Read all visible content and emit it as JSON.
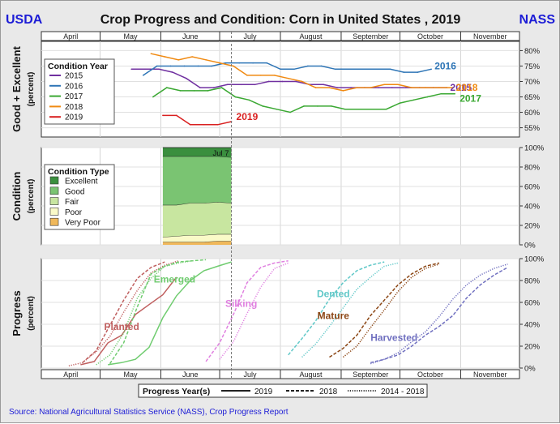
{
  "header": {
    "left_tag": "USDA",
    "title": "Crop Progress and Condition: Corn in United States , 2019",
    "right_tag": "NASS"
  },
  "source": "Source: National Agricultural Statistics Service (NASS), Crop Progress Report",
  "colors": {
    "brand": "#1c1cd6",
    "source_text": "#1c1cd6"
  },
  "chart_data": [
    {
      "type": "line",
      "panel": "good-excellent",
      "ylabel": "Good + Excellent",
      "yunit": "(percent)",
      "ylim": [
        52,
        83
      ],
      "yticks": [
        55,
        60,
        65,
        70,
        75,
        80
      ],
      "ytick_suffix": "%",
      "grid": true,
      "months": [
        "April",
        "May",
        "June",
        "July",
        "August",
        "September",
        "October",
        "November"
      ],
      "current_week_marker": "Jul 7",
      "legend": {
        "title": "Condition Year",
        "placement": "top-left"
      },
      "series": [
        {
          "name": "2015",
          "color": "#7030a0",
          "end_label": "2015",
          "x": [
            "May 17",
            "May 24",
            "May 31",
            "Jun 7",
            "Jun 14",
            "Jun 21",
            "Jun 28",
            "Jul 5",
            "Jul 12",
            "Jul 19",
            "Jul 26",
            "Aug 2",
            "Aug 9",
            "Aug 16",
            "Aug 23",
            "Aug 30",
            "Sep 6",
            "Sep 13",
            "Sep 20",
            "Sep 27",
            "Oct 4",
            "Oct 11",
            "Oct 18",
            "Oct 25"
          ],
          "y": [
            74,
            74,
            74,
            73,
            71,
            68,
            68,
            69,
            69,
            69,
            70,
            70,
            70,
            69,
            69,
            68,
            68,
            68,
            68,
            68,
            68,
            68,
            68,
            68
          ]
        },
        {
          "name": "2016",
          "color": "#2e75b6",
          "end_label": "2016",
          "x": [
            "May 23",
            "May 30",
            "Jun 6",
            "Jun 13",
            "Jun 20",
            "Jun 27",
            "Jul 4",
            "Jul 11",
            "Jul 18",
            "Jul 25",
            "Aug 1",
            "Aug 8",
            "Aug 15",
            "Aug 22",
            "Aug 29",
            "Sep 5",
            "Sep 12",
            "Sep 19",
            "Sep 26",
            "Oct 3",
            "Oct 10",
            "Oct 17"
          ],
          "y": [
            72,
            75,
            75,
            75,
            75,
            75,
            76,
            76,
            76,
            76,
            74,
            74,
            75,
            75,
            74,
            74,
            74,
            74,
            74,
            73,
            73,
            74
          ]
        },
        {
          "name": "2017",
          "color": "#3aa832",
          "end_label": "2017",
          "x": [
            "May 28",
            "Jun 4",
            "Jun 11",
            "Jun 18",
            "Jun 25",
            "Jul 2",
            "Jul 9",
            "Jul 16",
            "Jul 23",
            "Jul 30",
            "Aug 6",
            "Aug 13",
            "Aug 20",
            "Aug 27",
            "Sep 3",
            "Sep 10",
            "Sep 17",
            "Sep 24",
            "Oct 1",
            "Oct 8",
            "Oct 15",
            "Oct 22",
            "Oct 29"
          ],
          "y": [
            65,
            68,
            67,
            67,
            67,
            68,
            65,
            64,
            62,
            61,
            60,
            62,
            62,
            62,
            61,
            61,
            61,
            61,
            63,
            64,
            65,
            66,
            66
          ]
        },
        {
          "name": "2018",
          "color": "#f08a12",
          "end_label": "2018",
          "x": [
            "May 27",
            "Jun 3",
            "Jun 10",
            "Jun 17",
            "Jun 24",
            "Jul 1",
            "Jul 8",
            "Jul 15",
            "Jul 22",
            "Jul 29",
            "Aug 5",
            "Aug 12",
            "Aug 19",
            "Aug 26",
            "Sep 2",
            "Sep 9",
            "Sep 16",
            "Sep 23",
            "Sep 30",
            "Oct 7",
            "Oct 14",
            "Oct 21",
            "Oct 28"
          ],
          "y": [
            79,
            78,
            77,
            78,
            77,
            76,
            75,
            72,
            72,
            72,
            71,
            70,
            68,
            68,
            67,
            68,
            68,
            69,
            69,
            68,
            68,
            68,
            68
          ]
        },
        {
          "name": "2019",
          "color": "#d92020",
          "end_label": "2019",
          "x": [
            "Jun 2",
            "Jun 9",
            "Jun 16",
            "Jun 23",
            "Jun 30",
            "Jul 7"
          ],
          "y": [
            59,
            59,
            56,
            56,
            56,
            57
          ]
        }
      ]
    },
    {
      "type": "area",
      "panel": "condition",
      "ylabel": "Condition",
      "yunit": "(percent)",
      "ylim": [
        0,
        100
      ],
      "yticks": [
        0,
        20,
        40,
        60,
        80,
        100
      ],
      "ytick_suffix": "%",
      "legend": {
        "title": "Condition Type",
        "placement": "top-left"
      },
      "x": [
        "Jun 2",
        "Jun 9",
        "Jun 16",
        "Jun 23",
        "Jun 30",
        "Jul 7"
      ],
      "stacked_series": [
        {
          "name": "Very Poor",
          "color": "#f0b85a",
          "values": [
            3,
            3,
            3,
            3,
            4,
            4
          ]
        },
        {
          "name": "Poor",
          "color": "#fafac8",
          "values": [
            5,
            6,
            7,
            7,
            7,
            7
          ]
        },
        {
          "name": "Fair",
          "color": "#c8e6a0",
          "values": [
            33,
            32,
            33,
            33,
            33,
            32
          ]
        },
        {
          "name": "Good",
          "color": "#7ac472",
          "values": [
            50,
            50,
            48,
            48,
            47,
            47
          ]
        },
        {
          "name": "Excellent",
          "color": "#3a8f3e",
          "values": [
            9,
            9,
            9,
            9,
            9,
            10
          ]
        }
      ]
    },
    {
      "type": "line",
      "panel": "progress",
      "ylabel": "Progress",
      "yunit": "(percent)",
      "ylim": [
        0,
        100
      ],
      "yticks": [
        0,
        20,
        40,
        60,
        80,
        100
      ],
      "ytick_suffix": "%",
      "legend": {
        "title": "Progress Year(s)",
        "placement": "bottom",
        "entries": [
          "2019",
          "2018",
          "2014 - 2018"
        ]
      },
      "stages": [
        {
          "name": "Planted",
          "color": "#c06060",
          "y2019": {
            "x": [
              "Apr 21",
              "Apr 28",
              "May 5",
              "May 12",
              "May 19",
              "May 26",
              "Jun 2",
              "Jun 9"
            ],
            "y": [
              3,
              6,
              23,
              30,
              49,
              58,
              67,
              83
            ]
          },
          "y2018": {
            "x": [
              "Apr 22",
              "Apr 29",
              "May 6",
              "May 13",
              "May 20",
              "May 27",
              "Jun 3"
            ],
            "y": [
              5,
              16,
              39,
              62,
              82,
              92,
              97
            ]
          },
          "avg": {
            "x": [
              "Apr 15",
              "Apr 22",
              "Apr 29",
              "May 6",
              "May 13",
              "May 20",
              "May 27",
              "Jun 3",
              "Jun 10"
            ],
            "y": [
              2,
              5,
              15,
              29,
              51,
              71,
              87,
              94,
              98
            ]
          }
        },
        {
          "name": "Emerged",
          "color": "#70cc70",
          "y2019": {
            "x": [
              "May 5",
              "May 12",
              "May 19",
              "May 26",
              "Jun 2",
              "Jun 9",
              "Jun 16",
              "Jun 23",
              "Jun 30",
              "Jul 7"
            ],
            "y": [
              3,
              5,
              8,
              19,
              46,
              66,
              80,
              89,
              93,
              97
            ]
          },
          "y2018": {
            "x": [
              "May 6",
              "May 13",
              "May 20",
              "May 27",
              "Jun 3",
              "Jun 10",
              "Jun 17",
              "Jun 24"
            ],
            "y": [
              4,
              23,
              56,
              86,
              93,
              97,
              98,
              99
            ]
          },
          "avg": {
            "x": [
              "Apr 29",
              "May 6",
              "May 13",
              "May 20",
              "May 27",
              "Jun 3",
              "Jun 10",
              "Jun 17"
            ],
            "y": [
              3,
              12,
              32,
              64,
              82,
              93,
              96,
              98
            ]
          }
        },
        {
          "name": "Silking",
          "color": "#e080e0",
          "y2018": {
            "x": [
              "Jun 24",
              "Jul 1",
              "Jul 8",
              "Jul 15",
              "Jul 22",
              "Jul 29",
              "Aug 5"
            ],
            "y": [
              6,
              23,
              49,
              78,
              92,
              96,
              98
            ]
          },
          "avg": {
            "x": [
              "Jul 1",
              "Jul 8",
              "Jul 15",
              "Jul 22",
              "Jul 29",
              "Aug 5"
            ],
            "y": [
              8,
              24,
              50,
              74,
              91,
              96
            ]
          }
        },
        {
          "name": "Dented",
          "color": "#60c8c8",
          "y2018": {
            "x": [
              "Aug 5",
              "Aug 12",
              "Aug 19",
              "Aug 26",
              "Sep 2",
              "Sep 9",
              "Sep 16",
              "Sep 23"
            ],
            "y": [
              12,
              27,
              43,
              63,
              78,
              89,
              94,
              97
            ]
          },
          "avg": {
            "x": [
              "Aug 12",
              "Aug 19",
              "Aug 26",
              "Sep 2",
              "Sep 9",
              "Sep 16",
              "Sep 23",
              "Sep 30"
            ],
            "y": [
              10,
              22,
              38,
              55,
              72,
              83,
              93,
              96
            ]
          }
        },
        {
          "name": "Mature",
          "color": "#8b4513",
          "y2018": {
            "x": [
              "Aug 26",
              "Sep 2",
              "Sep 9",
              "Sep 16",
              "Sep 23",
              "Sep 30",
              "Oct 7",
              "Oct 14",
              "Oct 21"
            ],
            "y": [
              10,
              18,
              30,
              48,
              62,
              76,
              86,
              93,
              96
            ]
          },
          "avg": {
            "x": [
              "Sep 2",
              "Sep 9",
              "Sep 16",
              "Sep 23",
              "Sep 30",
              "Oct 7",
              "Oct 14",
              "Oct 21"
            ],
            "y": [
              10,
              20,
              37,
              53,
              70,
              83,
              91,
              95
            ]
          }
        },
        {
          "name": "Harvested",
          "color": "#7070c0",
          "y2018": {
            "x": [
              "Sep 16",
              "Sep 23",
              "Sep 30",
              "Oct 7",
              "Oct 14",
              "Oct 21",
              "Oct 28",
              "Nov 4",
              "Nov 11",
              "Nov 18",
              "Nov 25"
            ],
            "y": [
              5,
              8,
              12,
              20,
              30,
              38,
              48,
              64,
              76,
              85,
              92
            ]
          },
          "avg": {
            "x": [
              "Sep 16",
              "Sep 23",
              "Sep 30",
              "Oct 7",
              "Oct 14",
              "Oct 21",
              "Oct 28",
              "Nov 4",
              "Nov 11",
              "Nov 18",
              "Nov 25"
            ],
            "y": [
              4,
              8,
              14,
              24,
              33,
              47,
              63,
              76,
              85,
              91,
              95
            ]
          }
        }
      ]
    }
  ]
}
